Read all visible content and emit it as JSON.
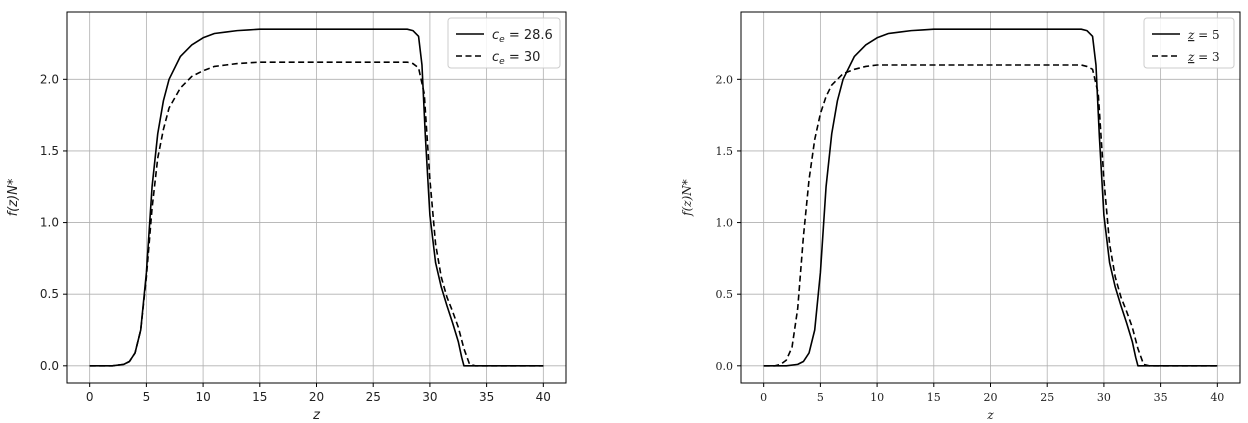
{
  "chart_data": [
    {
      "type": "line",
      "xlabel": "z",
      "ylabel": "f(z)N*",
      "xlim": [
        -2,
        42
      ],
      "ylim": [
        -0.12,
        2.47
      ],
      "xticks": [
        0,
        5,
        10,
        15,
        20,
        25,
        30,
        35,
        40
      ],
      "yticks": [
        0.0,
        0.5,
        1.0,
        1.5,
        2.0
      ],
      "xtick_labels": [
        "0",
        "5",
        "10",
        "15",
        "20",
        "25",
        "30",
        "35",
        "40"
      ],
      "ytick_labels": [
        "0.0",
        "0.5",
        "1.0",
        "1.5",
        "2.0"
      ],
      "grid": true,
      "legend_position": "top-right",
      "series": [
        {
          "name": "c_e = 28.6",
          "legend_label": "c_e = 28.6",
          "style": "solid",
          "color": "#000000",
          "x": [
            0,
            2,
            3,
            3.5,
            4,
            4.5,
            5,
            5.5,
            6,
            6.5,
            7,
            8,
            9,
            10,
            11,
            12,
            13,
            14,
            15,
            20,
            25,
            27,
            28,
            28.5,
            29,
            29.3,
            29.6,
            30,
            30.5,
            31,
            31.5,
            32,
            32.5,
            32.8,
            33,
            34,
            40
          ],
          "y": [
            0,
            0,
            0.01,
            0.03,
            0.09,
            0.25,
            0.65,
            1.25,
            1.62,
            1.85,
            2.0,
            2.16,
            2.24,
            2.29,
            2.32,
            2.33,
            2.34,
            2.345,
            2.35,
            2.35,
            2.35,
            2.35,
            2.35,
            2.34,
            2.3,
            2.1,
            1.6,
            1.05,
            0.72,
            0.55,
            0.42,
            0.3,
            0.17,
            0.06,
            0.0,
            0.0,
            0.0
          ]
        },
        {
          "name": "c_e = 30",
          "legend_label": "c_e = 30",
          "style": "dashed",
          "color": "#000000",
          "x": [
            0,
            2,
            3,
            3.5,
            4,
            4.5,
            5,
            5.5,
            6,
            6.5,
            7,
            8,
            9,
            10,
            11,
            12,
            13,
            15,
            20,
            25,
            28,
            28.5,
            29,
            29.5,
            30,
            30.5,
            31,
            31.5,
            32,
            32.5,
            33,
            33.5,
            34,
            40
          ],
          "y": [
            0,
            0,
            0.01,
            0.03,
            0.09,
            0.25,
            0.62,
            1.1,
            1.45,
            1.65,
            1.8,
            1.94,
            2.02,
            2.06,
            2.09,
            2.1,
            2.11,
            2.12,
            2.12,
            2.12,
            2.12,
            2.11,
            2.08,
            1.9,
            1.3,
            0.85,
            0.62,
            0.48,
            0.38,
            0.27,
            0.12,
            0.01,
            0.0,
            0.0
          ]
        }
      ]
    },
    {
      "type": "line",
      "xlabel": "z",
      "ylabel": "f(z)N*",
      "xlim": [
        -2,
        42
      ],
      "ylim": [
        -0.12,
        2.47
      ],
      "xticks": [
        0,
        5,
        10,
        15,
        20,
        25,
        30,
        35,
        40
      ],
      "yticks": [
        0.0,
        0.5,
        1.0,
        1.5,
        2.0
      ],
      "xtick_labels": [
        "0",
        "5",
        "10",
        "15",
        "20",
        "25",
        "30",
        "35",
        "40"
      ],
      "ytick_labels": [
        "0.0",
        "0.5",
        "1.0",
        "1.5",
        "2.0"
      ],
      "grid": true,
      "legend_position": "top-right",
      "series": [
        {
          "name": "z = 5",
          "legend_label": "z = 5",
          "style": "solid",
          "color": "#000000",
          "x": [
            0,
            2,
            3,
            3.5,
            4,
            4.5,
            5,
            5.5,
            6,
            6.5,
            7,
            8,
            9,
            10,
            11,
            12,
            13,
            14,
            15,
            20,
            25,
            27,
            28,
            28.5,
            29,
            29.3,
            29.6,
            30,
            30.5,
            31,
            31.5,
            32,
            32.5,
            32.8,
            33,
            34,
            40
          ],
          "y": [
            0,
            0,
            0.01,
            0.03,
            0.09,
            0.25,
            0.65,
            1.25,
            1.62,
            1.85,
            2.0,
            2.16,
            2.24,
            2.29,
            2.32,
            2.33,
            2.34,
            2.345,
            2.35,
            2.35,
            2.35,
            2.35,
            2.35,
            2.34,
            2.3,
            2.1,
            1.6,
            1.05,
            0.72,
            0.55,
            0.42,
            0.3,
            0.17,
            0.06,
            0.0,
            0.0,
            0.0
          ]
        },
        {
          "name": "z = 3",
          "legend_label": "z = 3",
          "style": "dashed",
          "color": "#000000",
          "x": [
            0,
            1,
            1.5,
            2,
            2.5,
            3,
            3.5,
            4,
            4.5,
            5,
            5.5,
            6,
            7,
            8,
            9,
            10,
            12,
            15,
            20,
            25,
            28,
            28.5,
            29,
            29.5,
            30,
            30.5,
            31,
            31.5,
            32,
            32.5,
            33,
            33.5,
            34,
            40
          ],
          "y": [
            0,
            0,
            0.01,
            0.04,
            0.13,
            0.4,
            0.9,
            1.3,
            1.58,
            1.76,
            1.88,
            1.96,
            2.04,
            2.07,
            2.09,
            2.1,
            2.1,
            2.1,
            2.1,
            2.1,
            2.1,
            2.09,
            2.07,
            1.9,
            1.3,
            0.85,
            0.62,
            0.48,
            0.38,
            0.27,
            0.12,
            0.01,
            0.0,
            0.0
          ]
        }
      ]
    }
  ]
}
